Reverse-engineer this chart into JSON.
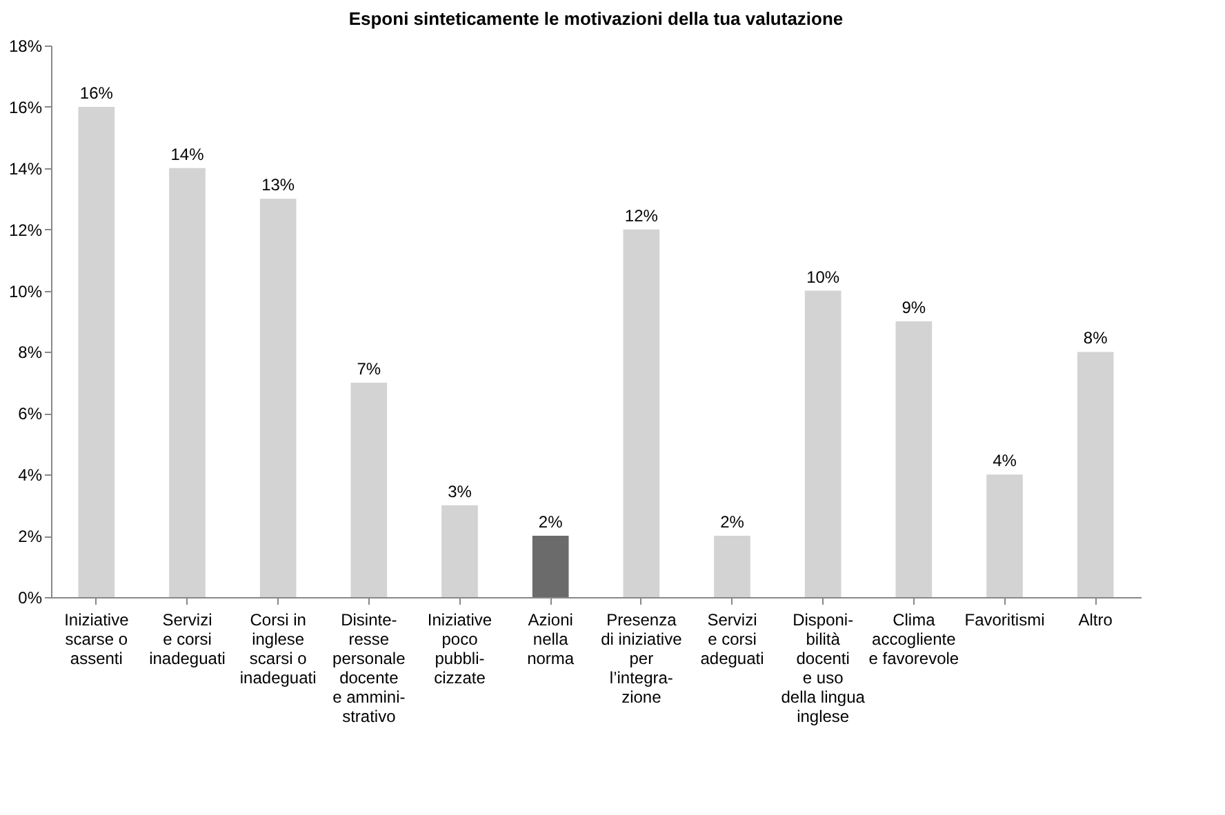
{
  "chart_data": {
    "type": "bar",
    "title": "Esponi sinteticamente le motivazioni della tua valutazione",
    "categories": [
      "Iniziative\nscarse o\nassenti",
      "Servizi\ne corsi\ninadeguati",
      "Corsi in\ninglese\nscarsi o\ninadeguati",
      "Disinte-\nresse\npersonale\ndocente\ne ammini-\nstrativo",
      "Iniziative\npoco\npubbli-\ncizzate",
      "Azioni\nnella\nnorma",
      "Presenza\ndi iniziative\nper\nl’integra-\nzione",
      "Servizi\ne corsi\nadeguati",
      "Disponi-\nbilità\ndocenti\ne uso\ndella lingua\ninglese",
      "Clima\naccogliente\ne favorevole",
      "Favoritismi",
      "Altro"
    ],
    "values": [
      16,
      14,
      13,
      7,
      3,
      2,
      12,
      2,
      10,
      9,
      4,
      8
    ],
    "value_labels": [
      "16%",
      "14%",
      "13%",
      "7%",
      "3%",
      "2%",
      "12%",
      "2%",
      "10%",
      "9%",
      "4%",
      "8%"
    ],
    "colors": [
      "#d3d3d3",
      "#d3d3d3",
      "#d3d3d3",
      "#d3d3d3",
      "#d3d3d3",
      "#6b6b6b",
      "#d3d3d3",
      "#d3d3d3",
      "#d3d3d3",
      "#d3d3d3",
      "#d3d3d3",
      "#d3d3d3"
    ],
    "ylim": [
      0,
      18
    ],
    "yticks": [
      {
        "value": 0,
        "label": "0%"
      },
      {
        "value": 2,
        "label": "2%"
      },
      {
        "value": 4,
        "label": "4%"
      },
      {
        "value": 6,
        "label": "6%"
      },
      {
        "value": 8,
        "label": "8%"
      },
      {
        "value": 10,
        "label": "10%"
      },
      {
        "value": 12,
        "label": "12%"
      },
      {
        "value": 14,
        "label": "14%"
      },
      {
        "value": 16,
        "label": "16%"
      },
      {
        "value": 18,
        "label": "18%"
      }
    ],
    "grid": false,
    "legend": false
  }
}
